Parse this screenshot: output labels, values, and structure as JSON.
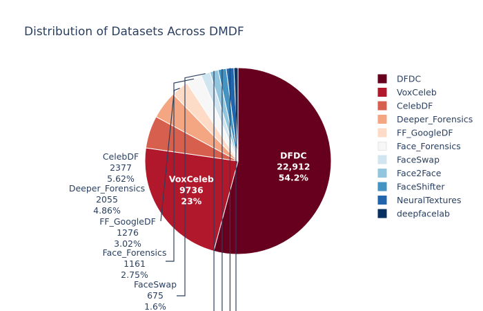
{
  "chart_data": {
    "type": "pie",
    "title": "Distribution of Datasets Across DMDF",
    "slices": [
      {
        "label": "DFDC",
        "value": 22912,
        "value_text": "22,912",
        "percent_text": "54.2%",
        "color": "#67001f"
      },
      {
        "label": "VoxCeleb",
        "value": 9736,
        "value_text": "9736",
        "percent_text": "23%",
        "color": "#b2182b"
      },
      {
        "label": "CelebDF",
        "value": 2377,
        "value_text": "2377",
        "percent_text": "5.62%",
        "color": "#d6604d"
      },
      {
        "label": "Deeper_Forensics",
        "value": 2055,
        "value_text": "2055",
        "percent_text": "4.86%",
        "color": "#f4a582"
      },
      {
        "label": "FF_GoogleDF",
        "value": 1276,
        "value_text": "1276",
        "percent_text": "3.02%",
        "color": "#fddbc7"
      },
      {
        "label": "Face_Forensics",
        "value": 1161,
        "value_text": "1161",
        "percent_text": "2.75%",
        "color": "#f7f7f7"
      },
      {
        "label": "FaceSwap",
        "value": 675,
        "value_text": "675",
        "percent_text": "1.6%",
        "color": "#d1e5f0"
      },
      {
        "label": "Face2Face",
        "value": 620,
        "color": "#92c5de"
      },
      {
        "label": "FaceShifter",
        "value": 590,
        "color": "#4393c3"
      },
      {
        "label": "NeuralTextures",
        "value": 560,
        "color": "#2166ac"
      },
      {
        "label": "deepfacelab",
        "value": 300,
        "color": "#053061"
      }
    ],
    "legend": {
      "position": "right"
    }
  }
}
